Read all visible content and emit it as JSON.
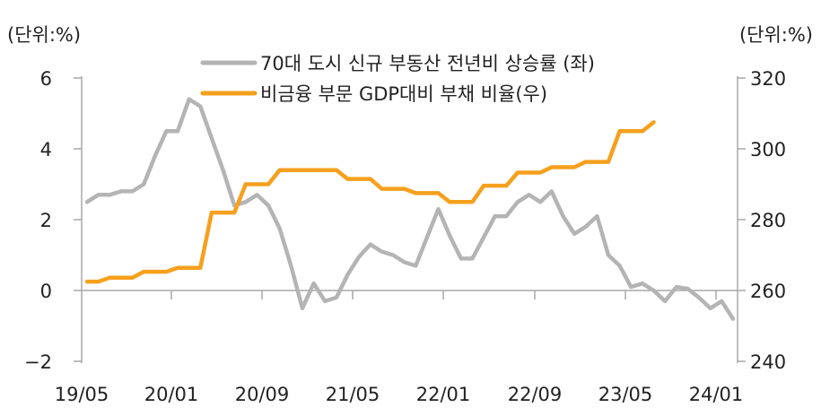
{
  "chart_data": {
    "type": "line",
    "left_unit_label": "(단위:%)",
    "right_unit_label": "(단위:%)",
    "left_axis": {
      "ylim": [
        -2,
        6
      ],
      "ticks": [
        6,
        4,
        2,
        0,
        -2
      ],
      "tick_labels": [
        "6",
        "4",
        "2",
        "0",
        "−2"
      ]
    },
    "right_axis": {
      "ylim": [
        240,
        320
      ],
      "ticks": [
        320,
        300,
        280,
        260,
        240
      ],
      "tick_labels": [
        "320",
        "300",
        "280",
        "260",
        "240"
      ]
    },
    "x_tick_labels": [
      "19/05",
      "20/01",
      "20/09",
      "21/05",
      "22/01",
      "22/09",
      "23/05",
      "24/01"
    ],
    "grid": false,
    "legend_placement": "top-center",
    "x": [
      "19/05",
      "19/06",
      "19/07",
      "19/08",
      "19/09",
      "19/10",
      "19/11",
      "19/12",
      "20/01",
      "20/02",
      "20/03",
      "20/04",
      "20/05",
      "20/06",
      "20/07",
      "20/08",
      "20/09",
      "20/10",
      "20/11",
      "20/12",
      "21/01",
      "21/02",
      "21/03",
      "21/04",
      "21/05",
      "21/06",
      "21/07",
      "21/08",
      "21/09",
      "21/10",
      "21/11",
      "21/12",
      "22/01",
      "22/02",
      "22/03",
      "22/04",
      "22/05",
      "22/06",
      "22/07",
      "22/08",
      "22/09",
      "22/10",
      "22/11",
      "22/12",
      "23/01",
      "23/02",
      "23/03",
      "23/04",
      "23/05",
      "23/06",
      "23/07",
      "23/08",
      "23/09",
      "23/10",
      "23/11",
      "23/12",
      "24/01",
      "24/02"
    ],
    "series": [
      {
        "name": "70대 도시 신규 부동산 전년비 상승률 (좌)",
        "axis": "left",
        "color": "#b4b4b4",
        "values": [
          2.5,
          2.7,
          2.7,
          2.8,
          2.8,
          3.0,
          3.8,
          4.5,
          4.5,
          5.4,
          5.2,
          4.3,
          3.4,
          2.4,
          2.5,
          2.7,
          2.4,
          1.75,
          0.7,
          -0.5,
          0.2,
          -0.3,
          -0.2,
          0.45,
          0.95,
          1.3,
          1.1,
          1.0,
          0.8,
          0.7,
          1.5,
          2.3,
          1.55,
          0.9,
          0.9,
          1.5,
          2.1,
          2.1,
          2.5,
          2.7,
          2.5,
          2.8,
          2.1,
          1.6,
          1.8,
          2.1,
          1.0,
          0.7,
          0.1,
          0.2,
          0.0,
          -0.3,
          0.1,
          0.05,
          -0.2,
          -0.5,
          -0.3,
          -0.8
        ]
      },
      {
        "name": "비금융 부문 GDP대비 부채 비율(우)",
        "axis": "right",
        "color": "#f5a01e",
        "values": [
          262.5,
          262.5,
          263.6,
          263.6,
          263.6,
          265.3,
          265.3,
          265.3,
          266.4,
          266.4,
          266.4,
          282,
          282,
          282,
          290,
          290,
          290,
          294,
          294,
          294,
          294,
          294,
          294,
          291.5,
          291.5,
          291.5,
          288.7,
          288.7,
          288.7,
          287.5,
          287.5,
          287.5,
          285,
          285,
          285,
          289.6,
          289.6,
          289.6,
          293.3,
          293.3,
          293.3,
          294.8,
          294.8,
          294.8,
          296.3,
          296.3,
          296.3,
          305,
          305,
          305,
          307.5,
          null,
          null,
          null,
          null,
          null,
          null,
          null
        ]
      }
    ]
  }
}
